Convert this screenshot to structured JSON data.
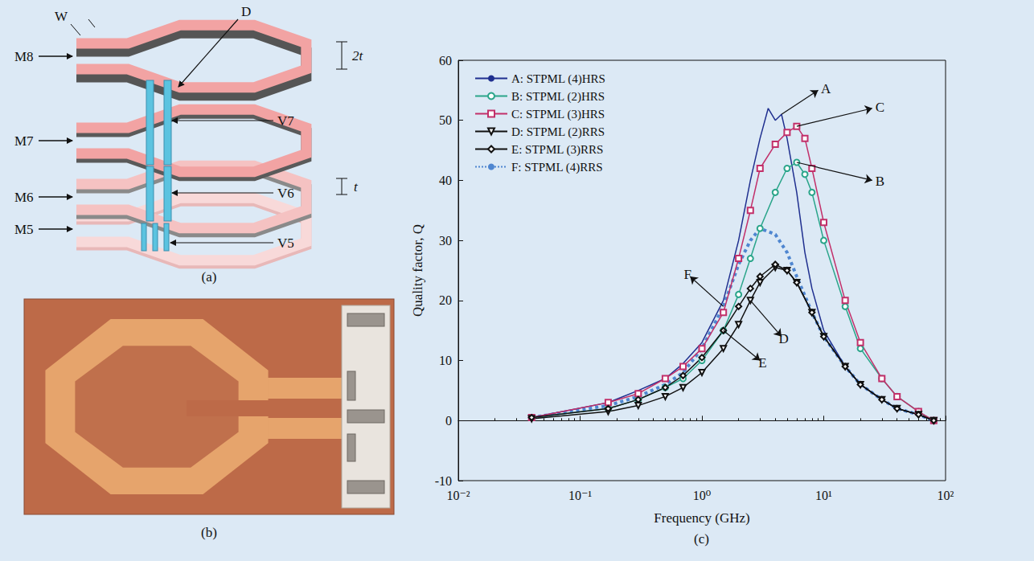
{
  "chart_data": {
    "type": "line",
    "panel_label": "(c)",
    "x_label": "Frequency (GHz)",
    "y_label": "Quality factor, Q",
    "log": "x",
    "grid": false,
    "legend": "top-left",
    "xlim": [
      0.01,
      100
    ],
    "xticks": [
      {
        "value": 0.01,
        "label": "10⁻²"
      },
      {
        "value": 0.1,
        "label": "10⁻¹"
      },
      {
        "value": 1,
        "label": "10⁰"
      },
      {
        "value": 10,
        "label": "10¹"
      },
      {
        "value": 100,
        "label": "10²"
      }
    ],
    "ylim": [
      -10,
      60
    ],
    "yticks": [
      -10,
      0,
      10,
      20,
      30,
      40,
      50,
      60
    ],
    "series": [
      {
        "name": "A: STPML (4)HRS",
        "color": "#1f2f8f",
        "marker": "none",
        "line_style": "solid",
        "x": [
          0.04,
          0.17,
          0.3,
          0.5,
          0.7,
          1,
          1.5,
          2,
          2.5,
          3,
          3.5,
          4,
          4.5,
          5,
          6,
          7,
          8,
          10,
          15,
          20,
          30,
          40,
          60,
          80
        ],
        "values": [
          0.5,
          3,
          5,
          7,
          9.5,
          13,
          20,
          30,
          40,
          47,
          52,
          50,
          51,
          47,
          38,
          28,
          22,
          15,
          9,
          6,
          3.5,
          2,
          1,
          0
        ]
      },
      {
        "name": "B: STPML (2)HRS",
        "color": "#2aa58a",
        "marker": "circle",
        "line_style": "solid",
        "x": [
          0.04,
          0.17,
          0.3,
          0.5,
          0.7,
          1,
          1.5,
          2,
          2.5,
          3,
          4,
          5,
          6,
          7,
          8,
          10,
          15,
          20,
          30,
          40,
          60,
          80
        ],
        "values": [
          0.5,
          2,
          3.5,
          5.5,
          7,
          10,
          15,
          21,
          27,
          32,
          38,
          42,
          43,
          41,
          38,
          30,
          19,
          12,
          7,
          4,
          1.5,
          0
        ]
      },
      {
        "name": "C: STPML (3)HRS",
        "color": "#c2306a",
        "marker": "square",
        "line_style": "solid",
        "x": [
          0.04,
          0.17,
          0.3,
          0.5,
          0.7,
          1,
          1.5,
          2,
          2.5,
          3,
          4,
          5,
          6,
          7,
          8,
          10,
          15,
          20,
          30,
          40,
          60,
          80
        ],
        "values": [
          0.5,
          3,
          4.5,
          7,
          9,
          12,
          18,
          27,
          35,
          42,
          46,
          48,
          49,
          47,
          42,
          33,
          20,
          13,
          7,
          4,
          1.5,
          0
        ]
      },
      {
        "name": "D: STPML (2)RRS",
        "color": "#111111",
        "marker": "triangle_down",
        "line_style": "solid",
        "x": [
          0.04,
          0.17,
          0.3,
          0.5,
          0.7,
          1,
          1.5,
          2,
          2.5,
          3,
          4,
          5,
          6,
          8,
          10,
          15,
          20,
          30,
          40,
          60,
          80
        ],
        "values": [
          0.3,
          1.5,
          2.5,
          4,
          5.5,
          8,
          12,
          16,
          20,
          23,
          25.5,
          25,
          23,
          18,
          14,
          9,
          6,
          3.5,
          2,
          1,
          0
        ]
      },
      {
        "name": "E: STPML (3)RRS",
        "color": "#111111",
        "marker": "diamond",
        "line_style": "solid",
        "x": [
          0.04,
          0.17,
          0.3,
          0.5,
          0.7,
          1,
          1.5,
          2,
          2.5,
          3,
          4,
          5,
          6,
          8,
          10,
          15,
          20,
          30,
          40,
          60,
          80
        ],
        "values": [
          0.5,
          2,
          3.5,
          5.5,
          7.5,
          10.5,
          15,
          19,
          22,
          24,
          26,
          25,
          23,
          18,
          14,
          9,
          6,
          3.5,
          2,
          1,
          0
        ]
      },
      {
        "name": "F: STPML (4)RRS",
        "color": "#4f86d0",
        "marker": "none",
        "line_style": "dotted",
        "x": [
          0.04,
          0.17,
          0.3,
          0.5,
          0.7,
          1,
          1.5,
          2,
          2.5,
          3,
          4,
          5,
          6,
          8,
          10,
          15,
          20,
          30,
          40,
          60,
          80
        ],
        "values": [
          0.5,
          2.5,
          4,
          6,
          8,
          12,
          19,
          26,
          30,
          32,
          31,
          28,
          24,
          18,
          14,
          9,
          6,
          3.5,
          2,
          1,
          0
        ]
      }
    ],
    "annotations": [
      {
        "text": "A"
      },
      {
        "text": "B"
      },
      {
        "text": "C"
      },
      {
        "text": "D"
      },
      {
        "text": "E"
      },
      {
        "text": "F"
      }
    ]
  },
  "diagram": {
    "panel_label": "(a)",
    "dimensions": {
      "width": "W",
      "diameter": "D",
      "top_thickness": "2t",
      "thickness": "t"
    },
    "metal_layers": [
      "M8",
      "M7",
      "M6",
      "M5"
    ],
    "vias": [
      "V7",
      "V6",
      "V5"
    ]
  },
  "photo": {
    "panel_label": "(b)"
  }
}
